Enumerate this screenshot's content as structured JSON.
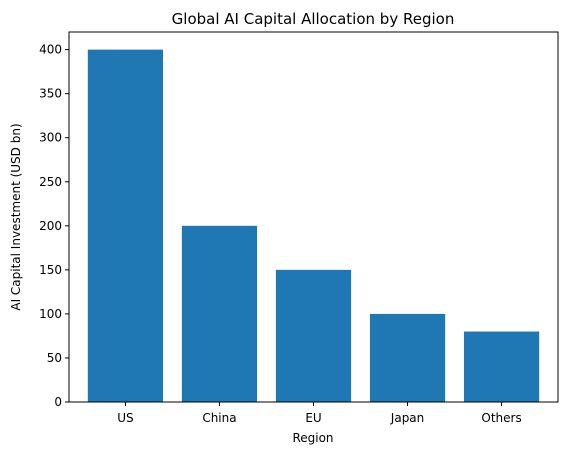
{
  "chart_data": {
    "type": "bar",
    "title": "Global AI Capital Allocation by Region",
    "xlabel": "Region",
    "ylabel": "AI Capital Investment (USD bn)",
    "categories": [
      "US",
      "China",
      "EU",
      "Japan",
      "Others"
    ],
    "values": [
      400,
      200,
      150,
      100,
      80
    ],
    "ylim": [
      0,
      420
    ],
    "yticks": [
      0,
      50,
      100,
      150,
      200,
      250,
      300,
      350,
      400
    ],
    "bar_color": "#1f77b4",
    "grid": false,
    "legend": "none"
  }
}
